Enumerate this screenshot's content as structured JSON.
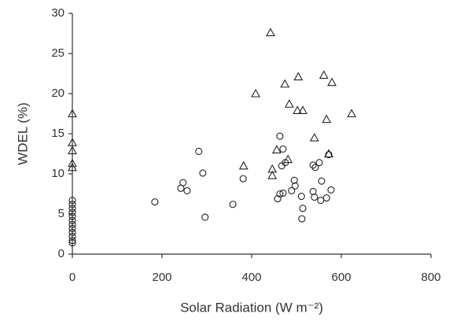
{
  "chart_data": {
    "type": "scatter",
    "xlabel": "Solar Radiation (W m⁻²)",
    "ylabel": "WDEL (%)",
    "xlim": [
      0,
      800
    ],
    "ylim": [
      0,
      30
    ],
    "xticks": [
      0,
      200,
      400,
      600,
      800
    ],
    "yticks": [
      0,
      5,
      10,
      15,
      20,
      25,
      30
    ],
    "grid": false,
    "series": [
      {
        "marker": "triangle",
        "color": "#222222",
        "x": [
          0,
          0,
          0,
          0,
          0,
          442,
          409,
          474,
          504,
          561,
          579,
          484,
          502,
          514,
          567,
          623,
          540,
          382,
          456,
          481,
          446,
          446,
          572
        ],
        "values": [
          17.5,
          13.9,
          12.9,
          11.3,
          10.8,
          27.6,
          20.0,
          21.2,
          22.1,
          22.3,
          21.4,
          18.7,
          17.9,
          17.9,
          16.8,
          17.5,
          14.5,
          11.0,
          13.0,
          11.8,
          10.6,
          9.8,
          12.5
        ]
      },
      {
        "marker": "circle",
        "color": "#222222",
        "x": [
          0,
          0,
          0,
          0,
          0,
          0,
          0,
          0,
          0,
          0,
          0,
          0,
          184,
          247,
          256,
          242,
          282,
          291,
          296,
          358,
          381,
          463,
          470,
          467,
          475,
          463,
          458,
          470,
          489,
          495,
          497,
          511,
          514,
          512,
          537,
          542,
          551,
          537,
          540,
          556,
          554,
          567,
          577,
          572
        ],
        "values": [
          6.7,
          6.2,
          5.7,
          5.2,
          4.7,
          4.2,
          3.7,
          3.2,
          2.7,
          2.2,
          1.7,
          1.4,
          6.5,
          8.9,
          7.9,
          8.2,
          12.8,
          10.1,
          4.6,
          6.2,
          9.4,
          14.7,
          13.1,
          11.0,
          11.4,
          7.5,
          6.9,
          7.6,
          7.9,
          9.2,
          8.5,
          7.2,
          5.7,
          4.4,
          11.1,
          10.8,
          11.4,
          7.8,
          7.1,
          9.1,
          6.7,
          7.0,
          8.0,
          12.4
        ]
      }
    ]
  }
}
